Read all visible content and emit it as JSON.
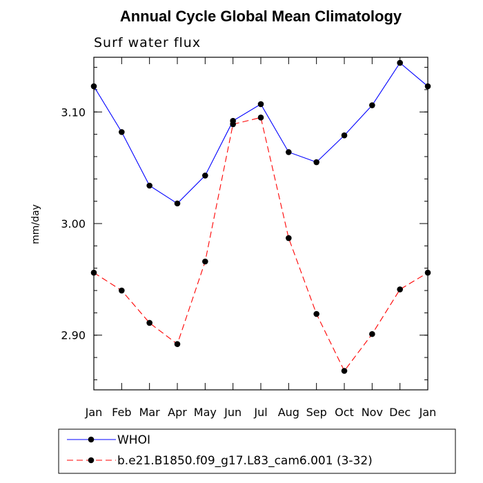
{
  "chart_data": {
    "type": "line",
    "title": "Annual Cycle Global Mean Climatology",
    "subtitle": "Surf water flux",
    "ylabel": "mm/day",
    "xlabel": "",
    "categories": [
      "Jan",
      "Feb",
      "Mar",
      "Apr",
      "May",
      "Jun",
      "Jul",
      "Aug",
      "Sep",
      "Oct",
      "Nov",
      "Dec",
      "Jan"
    ],
    "ylim": [
      2.851,
      3.149
    ],
    "y_major_ticks": [
      2.9,
      3.0,
      3.1
    ],
    "y_tick_labels": [
      "2.90",
      "3.00",
      "3.10"
    ],
    "grid": false,
    "legend_position": "bottom",
    "series": [
      {
        "name": "WHOI",
        "color": "#0000ff",
        "dash": "solid",
        "values": [
          3.123,
          3.082,
          3.034,
          3.018,
          3.043,
          3.092,
          3.107,
          3.064,
          3.055,
          3.079,
          3.106,
          3.144,
          3.123
        ]
      },
      {
        "name": "b.e21.B1850.f09_g17.L83_cam6.001 (3-32)",
        "color": "#ff0000",
        "dash": "dashed",
        "values": [
          2.956,
          2.94,
          2.911,
          2.892,
          2.966,
          3.089,
          3.095,
          2.987,
          2.919,
          2.868,
          2.901,
          2.941,
          2.956
        ]
      }
    ]
  }
}
